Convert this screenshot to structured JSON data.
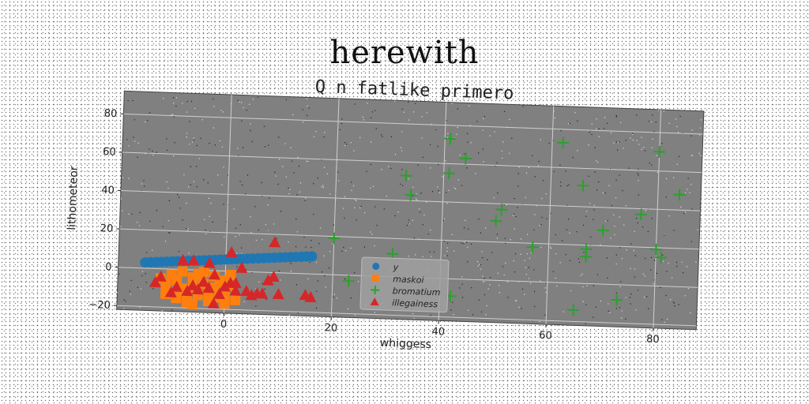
{
  "header": {
    "title": "herewith"
  },
  "chart_data": {
    "type": "scatter",
    "title": "Q n fatlike primero",
    "xlabel": "whiggess",
    "ylabel": "lithometeor",
    "xlim": [
      -20,
      88
    ],
    "ylim": [
      -22,
      92
    ],
    "xticks": [
      0,
      20,
      40,
      60,
      80
    ],
    "yticks": [
      -20,
      0,
      20,
      40,
      60,
      80
    ],
    "grid": true,
    "legend_position": "bottom-center",
    "series": [
      {
        "name": "y",
        "marker": "circle",
        "color": "#1f77b4",
        "x": [
          -15,
          -14,
          -13,
          -12,
          -11,
          -10,
          -9,
          -8,
          -7,
          -6,
          -5,
          -4,
          -3,
          -2,
          -1,
          0,
          1,
          2,
          3,
          4,
          5,
          6,
          7,
          8,
          9,
          10,
          11,
          12,
          13,
          14,
          15,
          16
        ],
        "y": [
          3,
          3.2,
          3.4,
          3.6,
          3.8,
          4,
          4.2,
          4.4,
          4.6,
          4.8,
          5,
          5.2,
          5.4,
          5.6,
          5.8,
          6,
          6.2,
          6.4,
          6.6,
          6.8,
          7,
          7.2,
          7.4,
          7.6,
          7.8,
          8,
          8.2,
          8.4,
          8.6,
          8.8,
          9,
          9.2
        ]
      },
      {
        "name": "maskoi",
        "marker": "square",
        "color": "#ff7f0e",
        "x": [
          -12,
          -11,
          -10,
          -10,
          -9,
          -8,
          -8,
          -7,
          -6,
          -6,
          -5,
          -5,
          -4,
          -3,
          -3,
          -2,
          -2,
          -1,
          -1,
          0,
          0,
          1,
          1,
          2,
          -9,
          -7,
          -4,
          -11,
          -6,
          0
        ],
        "y": [
          -5,
          -8,
          -3,
          -12,
          -6,
          -10,
          -1,
          -14,
          -4,
          -9,
          -13,
          -2,
          -7,
          -11,
          -16,
          -3,
          -9,
          -14,
          -6,
          -12,
          -17,
          -8,
          -2,
          -15,
          -15,
          -17,
          -1,
          -13,
          -18,
          -5
        ]
      },
      {
        "name": "bromatium",
        "marker": "plus",
        "color": "#2ca02c",
        "x": [
          20,
          23,
          31,
          33,
          34,
          41,
          41,
          42,
          44,
          50,
          51,
          57,
          62,
          65,
          66,
          67,
          67,
          70,
          73,
          77,
          80,
          80,
          81,
          84
        ],
        "y": [
          19,
          -3,
          12,
          53,
          43,
          73,
          55,
          -9,
          63,
          31,
          37,
          18,
          73,
          -14,
          51,
          18,
          14,
          28,
          -8,
          37,
          19,
          70,
          15,
          48
        ]
      },
      {
        "name": "illegainess",
        "marker": "triangle",
        "color": "#d62728",
        "x": [
          -13,
          -12,
          -10,
          -9,
          -8,
          -7,
          -6,
          -6,
          -5,
          -4,
          -3,
          -3,
          -2,
          -2,
          -1,
          0,
          1,
          1,
          2,
          2,
          3,
          4,
          5,
          6,
          7,
          8,
          9,
          9,
          10,
          15,
          16
        ],
        "y": [
          -7,
          -4,
          -12,
          -9,
          5,
          -11,
          5,
          -8,
          -10,
          -6,
          4,
          -9,
          -2,
          -17,
          -12,
          -8,
          -6,
          10,
          -10,
          -6,
          2,
          -10,
          -12,
          -11,
          -11,
          -4,
          16,
          -2,
          -11,
          -11,
          -12
        ]
      }
    ]
  }
}
